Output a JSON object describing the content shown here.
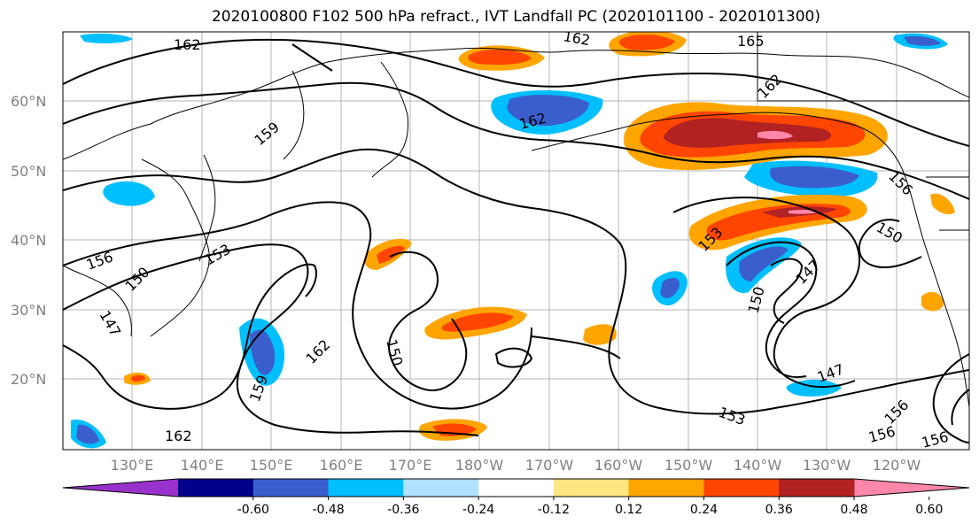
{
  "title": "2020100800 F102 500 hPa refract., IVT Landfall PC (2020101100 - 2020101300)",
  "lat_labels": [
    "60°N",
    "50°N",
    "40°N",
    "30°N",
    "20°N"
  ],
  "lon_labels": [
    "130°E",
    "140°E",
    "150°E",
    "160°E",
    "170°E",
    "180°W",
    "170°W",
    "160°W",
    "150°W",
    "140°W",
    "130°W",
    "120°W"
  ],
  "contour_labels": [
    "162",
    "165",
    "162",
    "162",
    "159",
    "156",
    "156",
    "150",
    "153",
    "150",
    "147",
    "150",
    "147",
    "147",
    "153",
    "156",
    "162",
    "159",
    "162",
    "150",
    "153",
    "156",
    "156",
    "162"
  ],
  "colorbar": {
    "ticks": [
      "-0.60",
      "-0.48",
      "-0.36",
      "-0.24",
      "-0.12",
      "0.12",
      "0.24",
      "0.36",
      "0.48",
      "0.60"
    ],
    "colors": [
      "#9932cc",
      "#00008b",
      "#3a5fcd",
      "#00bfff",
      "#b0e2ff",
      "#ffffff",
      "#ffe680",
      "#ffa500",
      "#ff4500",
      "#b22222",
      "#ff88aa"
    ]
  }
}
